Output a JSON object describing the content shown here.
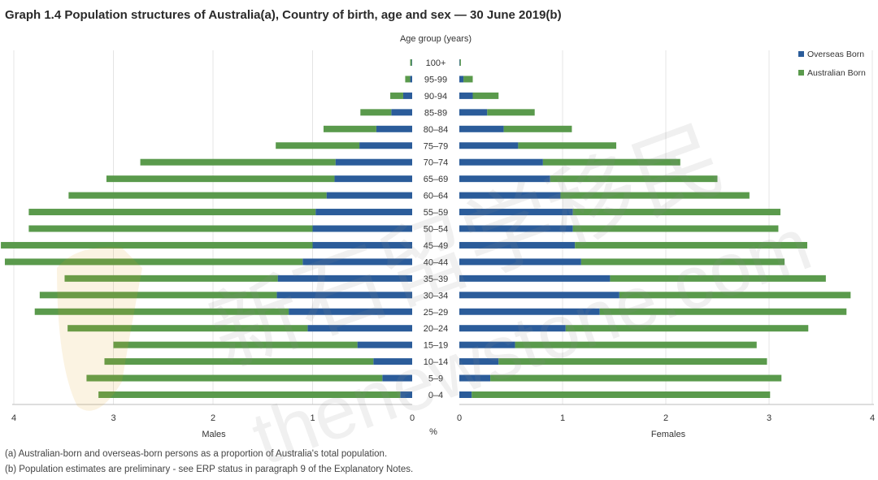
{
  "title": "Graph 1.4 Population structures of Australia(a), Country of birth, age and sex — 30 June 2019(b)",
  "notes": [
    "(a) Australian-born and overseas-born persons as a proportion of Australia's total population.",
    "(b) Population estimates are preliminary - see ERP status in paragraph 9 of the Explanatory Notes."
  ],
  "watermark": {
    "text_cn": "新石留学移民",
    "text_url": "thenewstone.com"
  },
  "colors": {
    "overseas": "#2b5c9a",
    "australian": "#5a9a4c",
    "grid": "#e4e4e4",
    "axis": "#bdbdbd",
    "text": "#333333"
  },
  "chart_data": {
    "type": "bar",
    "orientation": "horizontal-stacked-pyramid",
    "age_axis_label": "Age group (years)",
    "unit_label": "%",
    "males_label": "Males",
    "females_label": "Females",
    "xlim": [
      0,
      4
    ],
    "x_ticks": [
      "0",
      "1",
      "2",
      "3",
      "4"
    ],
    "grid": true,
    "legend_position": "top-right",
    "categories": [
      "100+",
      "95-99",
      "90-94",
      "85-89",
      "80–84",
      "75–79",
      "70–74",
      "65–69",
      "60–64",
      "55–59",
      "50–54",
      "45–49",
      "40–44",
      "35–39",
      "30–34",
      "25–29",
      "20–24",
      "15–19",
      "10–14",
      "5–9",
      "0–4"
    ],
    "series": [
      {
        "name": "Overseas Born",
        "males": [
          0.005,
          0.02,
          0.09,
          0.21,
          0.36,
          0.53,
          0.77,
          0.78,
          0.86,
          0.97,
          1.0,
          1.0,
          1.1,
          1.35,
          1.36,
          1.24,
          1.05,
          0.55,
          0.39,
          0.3,
          0.12
        ],
        "females": [
          0.005,
          0.04,
          0.13,
          0.27,
          0.43,
          0.57,
          0.81,
          0.88,
          0.98,
          1.1,
          1.1,
          1.12,
          1.18,
          1.46,
          1.55,
          1.36,
          1.03,
          0.54,
          0.38,
          0.3,
          0.12
        ]
      },
      {
        "name": "Australian Born",
        "males": [
          0.015,
          0.05,
          0.13,
          0.31,
          0.53,
          0.84,
          1.96,
          2.29,
          2.59,
          2.88,
          2.85,
          3.13,
          2.99,
          2.14,
          2.38,
          2.55,
          2.41,
          2.45,
          2.7,
          2.97,
          3.03
        ],
        "females": [
          0.01,
          0.09,
          0.25,
          0.46,
          0.66,
          0.95,
          1.33,
          1.62,
          1.83,
          2.01,
          1.99,
          2.25,
          1.97,
          2.09,
          2.24,
          2.39,
          2.35,
          2.34,
          2.6,
          2.82,
          2.89
        ]
      }
    ]
  }
}
